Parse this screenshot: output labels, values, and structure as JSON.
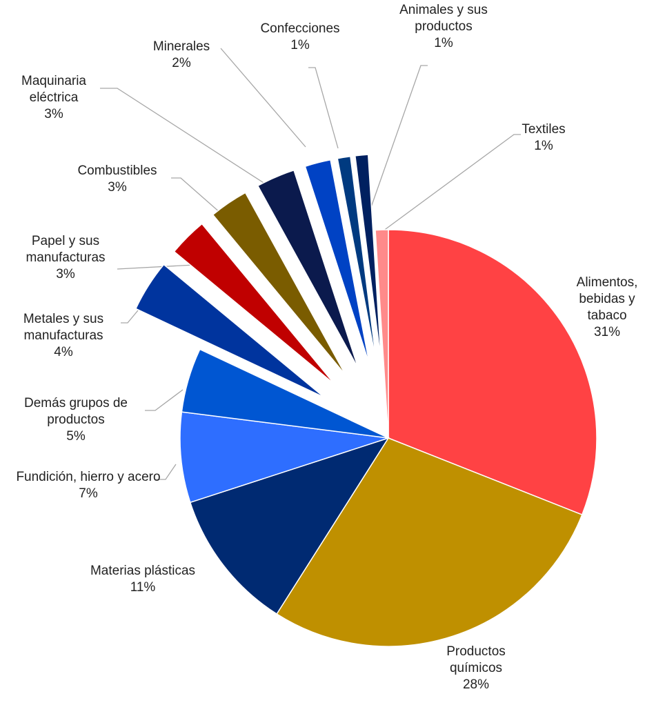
{
  "chart_data": {
    "type": "pie",
    "categories": [
      "Alimentos, bebidas y tabaco",
      "Productos químicos",
      "Materias plásticas",
      "Fundición, hierro y acero",
      "Demás grupos de productos",
      "Metales y sus manufacturas",
      "Papel y sus manufacturas",
      "Combustibles",
      "Maquinaria eléctrica",
      "Minerales",
      "Confecciones",
      "Animales y sus productos",
      "Textiles"
    ],
    "values": [
      31,
      28,
      11,
      7,
      5,
      4,
      3,
      3,
      3,
      2,
      1,
      1,
      1
    ],
    "value_labels": [
      "31%",
      "28%",
      "11%",
      "7%",
      "5%",
      "4%",
      "3%",
      "3%",
      "3%",
      "2%",
      "1%",
      "1%",
      "1%"
    ],
    "colors": [
      "#ff4244",
      "#bf9000",
      "#002a72",
      "#2e6eff",
      "#0056d2",
      "#00349e",
      "#c00000",
      "#7a5c00",
      "#0b1a4d",
      "#0042c4",
      "#003a80",
      "#002060",
      "#ff8a8a"
    ],
    "exploded": [
      false,
      false,
      false,
      false,
      false,
      true,
      true,
      true,
      true,
      true,
      true,
      true,
      false
    ]
  }
}
